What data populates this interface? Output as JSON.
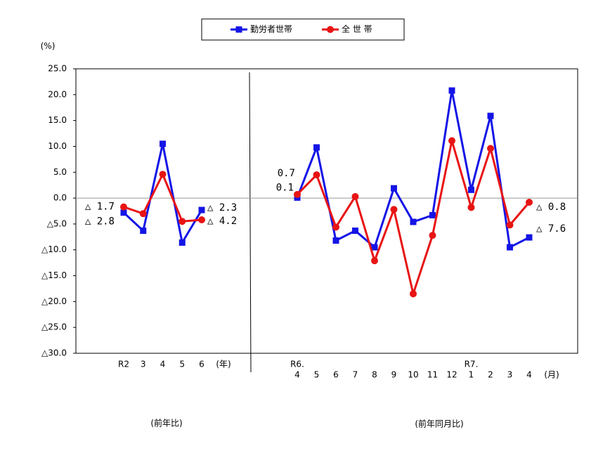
{
  "chart_data": [
    {
      "type": "line",
      "y_label": "(%)",
      "x_unit": "(年)",
      "x_label": "(前年比)",
      "ylim": [
        -30,
        25
      ],
      "yticks": [
        {
          "value": -30,
          "label": "△30.0"
        },
        {
          "value": -25,
          "label": "△25.0"
        },
        {
          "value": -20,
          "label": "△20.0"
        },
        {
          "value": -15,
          "label": "△15.0"
        },
        {
          "value": -10,
          "label": "△10.0"
        },
        {
          "value": -5,
          "label": "△5.0"
        },
        {
          "value": 0,
          "label": "0.0"
        },
        {
          "value": 5,
          "label": "5.0"
        },
        {
          "value": 10,
          "label": "10.0"
        },
        {
          "value": 15,
          "label": "15.0"
        },
        {
          "value": 20,
          "label": "20.0"
        },
        {
          "value": 25,
          "label": "25.0"
        }
      ],
      "categories": [
        "R2",
        "3",
        "4",
        "5",
        "6"
      ],
      "series": [
        {
          "name": "勤労者世帯",
          "color": "#1414e6",
          "marker": "square",
          "values": [
            -2.8,
            -6.3,
            10.5,
            -8.6,
            -2.3
          ],
          "value_labels": [
            "△ 2.8",
            null,
            null,
            null,
            "△ 2.3"
          ]
        },
        {
          "name": "全 世 帯",
          "color": "#e81414",
          "marker": "circle",
          "values": [
            -1.7,
            -3.0,
            4.6,
            -4.5,
            -4.2
          ],
          "value_labels": [
            "△ 1.7",
            null,
            null,
            null,
            "△ 4.2"
          ]
        }
      ]
    },
    {
      "type": "line",
      "x_unit": "(月)",
      "x_label": "(前年同月比)",
      "categories": [
        "4",
        "5",
        "6",
        "7",
        "8",
        "9",
        "10",
        "11",
        "12",
        "1",
        "2",
        "3",
        "4"
      ],
      "category_years": [
        "R6.",
        null,
        null,
        null,
        null,
        null,
        null,
        null,
        null,
        "R7.",
        null,
        null,
        null
      ],
      "series": [
        {
          "color": "#1414e6",
          "marker": "square",
          "values": [
            0.1,
            9.8,
            -8.2,
            -6.3,
            -9.5,
            1.9,
            -4.6,
            -3.3,
            20.8,
            1.6,
            15.9,
            -9.5,
            -7.6
          ],
          "value_labels": [
            "0.1",
            null,
            null,
            null,
            null,
            null,
            null,
            null,
            null,
            null,
            null,
            null,
            "△ 7.6"
          ]
        },
        {
          "color": "#e81414",
          "marker": "circle",
          "values": [
            0.7,
            4.5,
            -5.6,
            0.3,
            -12.1,
            -2.2,
            -18.5,
            -7.2,
            11.1,
            -1.8,
            9.6,
            -5.2,
            -0.8
          ],
          "value_labels": [
            "0.7",
            null,
            null,
            null,
            null,
            null,
            null,
            null,
            null,
            null,
            null,
            null,
            "△ 0.8"
          ]
        }
      ]
    }
  ]
}
